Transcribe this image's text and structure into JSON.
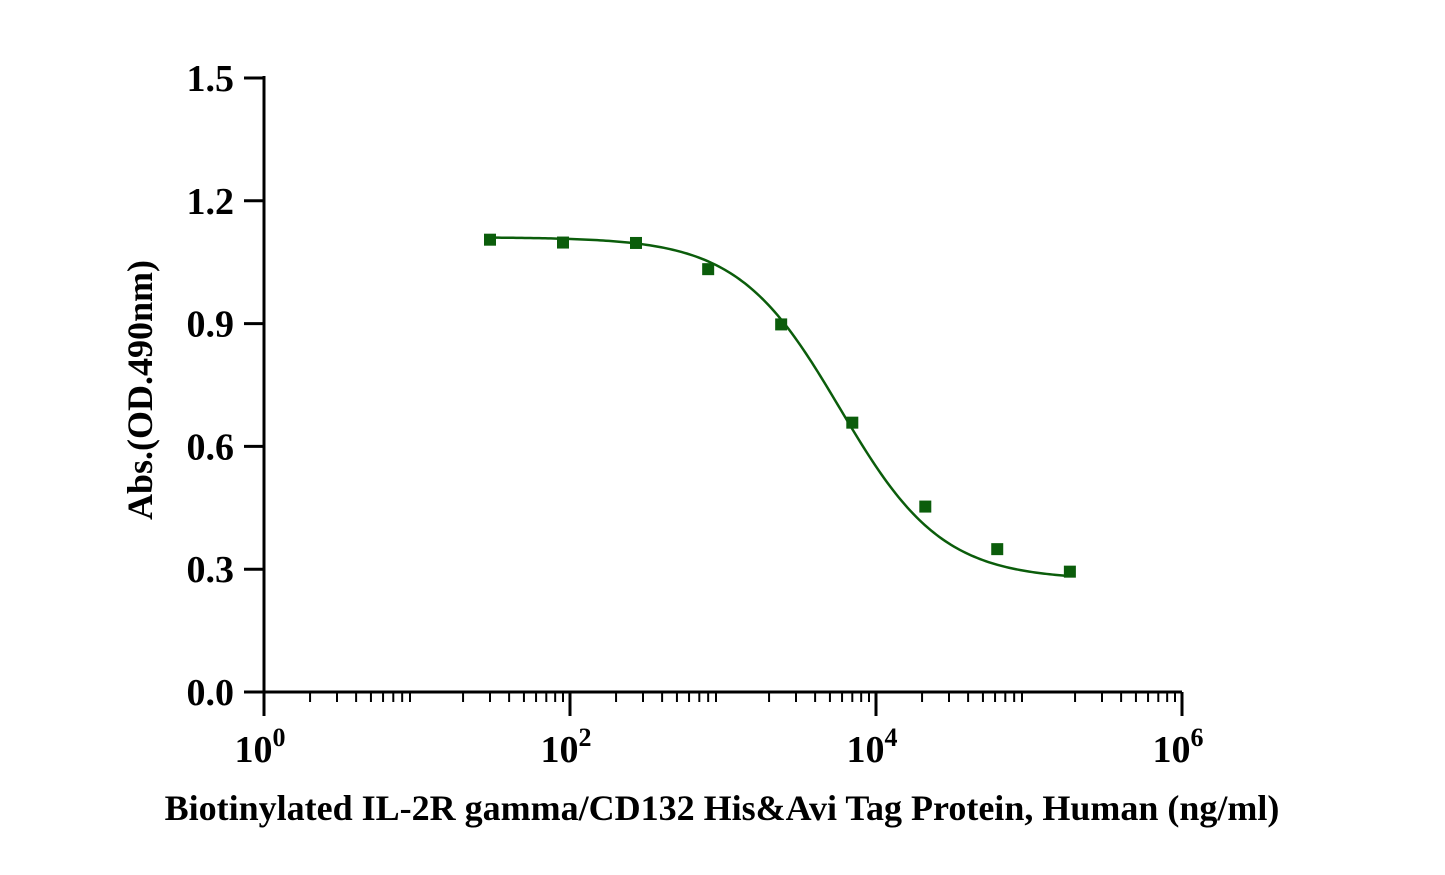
{
  "chart_data": {
    "type": "scatter",
    "title": "",
    "xlabel": "Biotinylated IL-2R gamma/CD132 His&Avi Tag Protein, Human (ng/ml)",
    "ylabel": "Abs.(OD.490nm)",
    "x_scale": "log",
    "xlim": [
      1,
      1000000
    ],
    "ylim": [
      0,
      1.5
    ],
    "x_ticks": [
      {
        "base": "10",
        "exp": "0"
      },
      {
        "base": "10",
        "exp": "2"
      },
      {
        "base": "10",
        "exp": "4"
      },
      {
        "base": "10",
        "exp": "6"
      }
    ],
    "y_ticks": [
      "0.0",
      "0.3",
      "0.6",
      "0.9",
      "1.2",
      "1.5"
    ],
    "grid": false,
    "legend": "none",
    "series_color": "#0b5d0b",
    "series": [
      {
        "x": [
          30,
          90,
          270,
          800,
          2400,
          7000,
          21000,
          62000,
          185000
        ],
        "y": [
          1.105,
          1.098,
          1.097,
          1.033,
          0.898,
          0.658,
          0.453,
          0.349,
          0.294
        ],
        "marker": "square",
        "fit": "four-parameter logistic"
      }
    ]
  }
}
